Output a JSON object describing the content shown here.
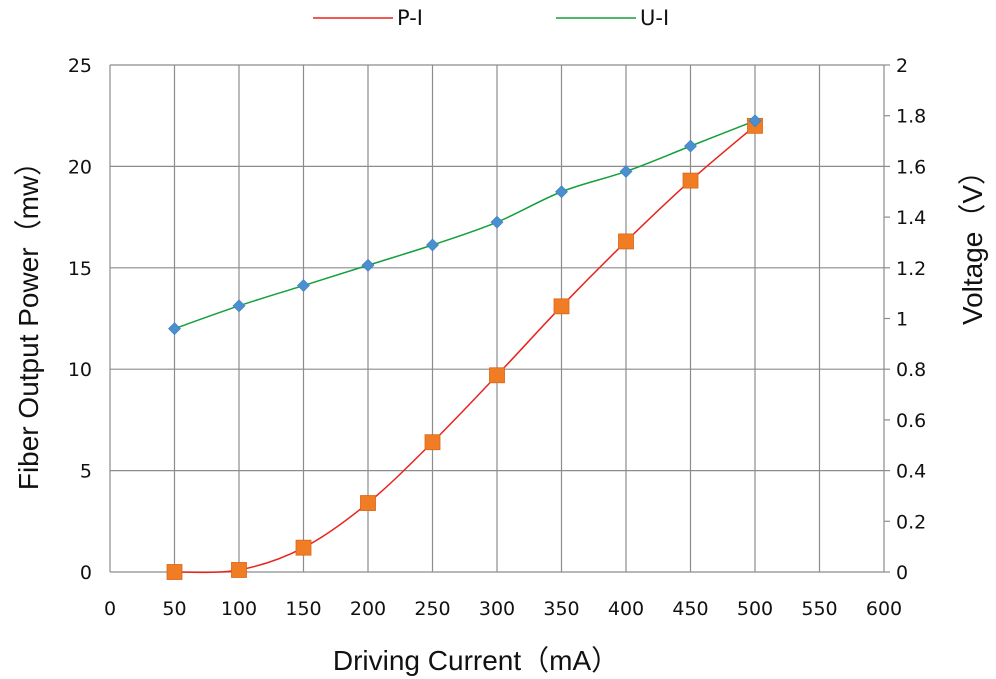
{
  "chart_data": {
    "type": "line",
    "x": [
      50,
      100,
      150,
      200,
      250,
      300,
      350,
      400,
      450,
      500
    ],
    "xlabel": "Driving Current（mA）",
    "ylabel": "Fiber Output Power（mw）",
    "y2label": "Voltage（V）",
    "xlim": [
      0,
      600
    ],
    "ylim": [
      0,
      25
    ],
    "y2lim": [
      0,
      2
    ],
    "xticks": [
      "0",
      "50",
      "100",
      "150",
      "200",
      "250",
      "300",
      "350",
      "400",
      "450",
      "500",
      "550",
      "600"
    ],
    "yticks": [
      "0",
      "5",
      "10",
      "15",
      "20",
      "25"
    ],
    "y2ticks": [
      "0",
      "0.2",
      "0.4",
      "0.6",
      "0.8",
      "1",
      "1.2",
      "1.4",
      "1.6",
      "1.8",
      "2"
    ],
    "grid": true,
    "legend_position": "top",
    "series": [
      {
        "name": "P-I",
        "axis": "left",
        "color": "#e8231c",
        "marker": "square",
        "marker_color": "#f07d23",
        "values": [
          0,
          0.1,
          1.2,
          3.4,
          6.4,
          9.7,
          13.1,
          16.3,
          19.3,
          22.0
        ]
      },
      {
        "name": "U-I",
        "axis": "right",
        "color": "#12a03a",
        "marker": "diamond",
        "marker_color": "#4a90d0",
        "values": [
          0.96,
          1.05,
          1.13,
          1.21,
          1.29,
          1.38,
          1.5,
          1.58,
          1.68,
          1.78
        ]
      }
    ]
  }
}
